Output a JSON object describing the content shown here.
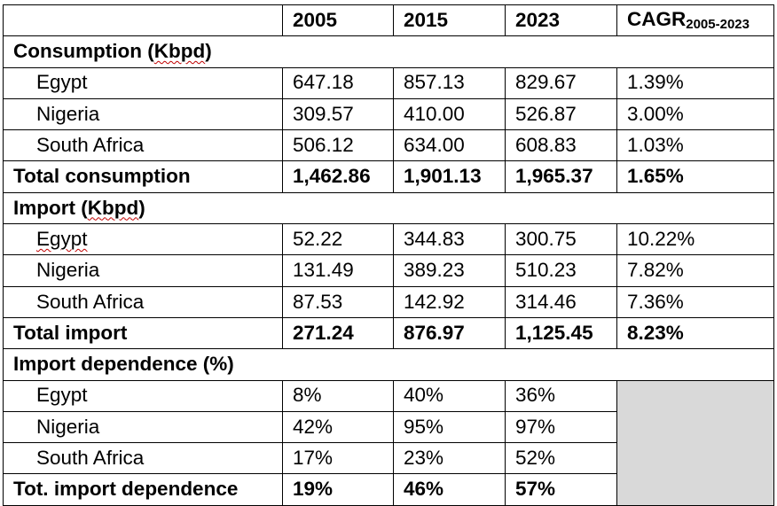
{
  "header": {
    "col1": "2005",
    "col2": "2015",
    "col3": "2023",
    "col4_main": "CAGR",
    "col4_sub": "2005-2023"
  },
  "consumption": {
    "section_label_pre": "Consumption (",
    "section_label_unit": "Kbpd",
    "section_label_post": ")",
    "rows": [
      {
        "country": "Egypt",
        "v2005": "647.18",
        "v2015": "857.13",
        "v2023": "829.67",
        "cagr": "1.39%"
      },
      {
        "country": "Nigeria",
        "v2005": "309.57",
        "v2015": "410.00",
        "v2023": "526.87",
        "cagr": "3.00%"
      },
      {
        "country": "South Africa",
        "v2005": "506.12",
        "v2015": "634.00",
        "v2023": "608.83",
        "cagr": "1.03%"
      }
    ],
    "total": {
      "label": "Total consumption",
      "v2005": "1,462.86",
      "v2015": "1,901.13",
      "v2023": "1,965.37",
      "cagr": "1.65%"
    }
  },
  "import": {
    "section_label_pre": "Import (",
    "section_label_unit": "Kbpd",
    "section_label_post": ")",
    "rows": [
      {
        "country": "Egypt",
        "v2005": "52.22",
        "v2015": "344.83",
        "v2023": "300.75",
        "cagr": "10.22%"
      },
      {
        "country": "Nigeria",
        "v2005": "131.49",
        "v2015": "389.23",
        "v2023": "510.23",
        "cagr": "7.82%"
      },
      {
        "country": "South Africa",
        "v2005": "87.53",
        "v2015": "142.92",
        "v2023": "314.46",
        "cagr": "7.36%"
      }
    ],
    "total": {
      "label": "Total import",
      "v2005": "271.24",
      "v2015": "876.97",
      "v2023": "1,125.45",
      "cagr": "8.23%"
    }
  },
  "dependence": {
    "section_label": "Import dependence (%)",
    "rows": [
      {
        "country": "Egypt",
        "v2005": "8%",
        "v2015": "40%",
        "v2023": "36%"
      },
      {
        "country": "Nigeria",
        "v2005": "42%",
        "v2015": "95%",
        "v2023": "97%"
      },
      {
        "country": "South Africa",
        "v2005": "17%",
        "v2015": "23%",
        "v2023": "52%"
      }
    ],
    "total": {
      "label": "Tot. import dependence",
      "v2005": "19%",
      "v2015": "46%",
      "v2023": "57%"
    }
  },
  "colors": {
    "gray_fill": "#d9d9d9",
    "spell_underline": "#c00000"
  }
}
